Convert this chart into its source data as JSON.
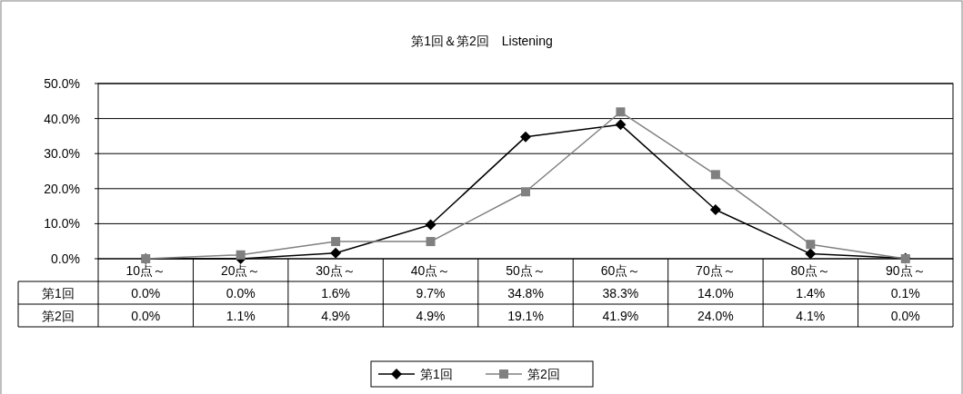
{
  "chart_data": {
    "type": "line",
    "title": "第1回＆第2回　Listening",
    "categories": [
      "10点～",
      "20点～",
      "30点～",
      "40点～",
      "50点～",
      "60点～",
      "70点～",
      "80点～",
      "90点～"
    ],
    "series": [
      {
        "name": "第1回",
        "color": "#000000",
        "marker": "diamond",
        "values": [
          0.0,
          0.0,
          1.6,
          9.7,
          34.8,
          38.3,
          14.0,
          1.4,
          0.1
        ],
        "value_labels": [
          "0.0%",
          "0.0%",
          "1.6%",
          "9.7%",
          "34.8%",
          "38.3%",
          "14.0%",
          "1.4%",
          "0.1%"
        ]
      },
      {
        "name": "第2回",
        "color": "#808080",
        "marker": "square",
        "values": [
          0.0,
          1.1,
          4.9,
          4.9,
          19.1,
          41.9,
          24.0,
          4.1,
          0.0
        ],
        "value_labels": [
          "0.0%",
          "1.1%",
          "4.9%",
          "4.9%",
          "19.1%",
          "41.9%",
          "24.0%",
          "4.1%",
          "0.0%"
        ]
      }
    ],
    "ylim": [
      0,
      50
    ],
    "yticks": [
      {
        "value": 0,
        "label": "0.0%"
      },
      {
        "value": 10,
        "label": "10.0%"
      },
      {
        "value": 20,
        "label": "20.0%"
      },
      {
        "value": 30,
        "label": "30.0%"
      },
      {
        "value": 40,
        "label": "40.0%"
      },
      {
        "value": 50,
        "label": "50.0%"
      }
    ],
    "grid": "y",
    "legend": "bottom",
    "line_style": "solid"
  }
}
